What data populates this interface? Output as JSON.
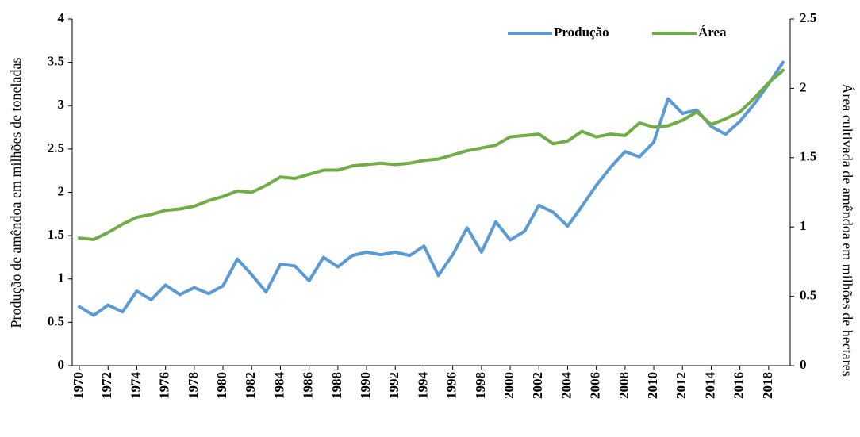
{
  "chart_data": {
    "type": "line",
    "categories": [
      "1970",
      null,
      "1972",
      null,
      "1974",
      null,
      "1976",
      null,
      "1978",
      null,
      "1980",
      null,
      "1982",
      null,
      "1984",
      null,
      "1986",
      null,
      "1988",
      null,
      "1990",
      null,
      "1992",
      null,
      "1994",
      null,
      "1996",
      null,
      "1998",
      null,
      "2000",
      null,
      "2002",
      null,
      "2004",
      null,
      "2006",
      null,
      "2008",
      null,
      "2010",
      null,
      "2012",
      null,
      "2014",
      null,
      "2016",
      null,
      "2018",
      null
    ],
    "series": [
      {
        "name": "Produção",
        "color": "#5b9bd5",
        "values": [
          0.68,
          0.58,
          0.7,
          0.62,
          0.86,
          0.76,
          0.93,
          0.82,
          0.9,
          0.83,
          0.92,
          1.23,
          1.05,
          0.85,
          1.17,
          1.15,
          0.98,
          1.25,
          1.14,
          1.27,
          1.31,
          1.28,
          1.31,
          1.27,
          1.38,
          1.04,
          1.28,
          1.59,
          1.31,
          1.66,
          1.45,
          1.55,
          1.85,
          1.77,
          1.61,
          1.84,
          2.08,
          2.29,
          2.47,
          2.41,
          2.58,
          3.08,
          2.91,
          2.95,
          2.76,
          2.67,
          2.82,
          3.02,
          3.25,
          3.5
        ]
      },
      {
        "name": "Área",
        "color": "#70ad47",
        "axis": "y2",
        "values": [
          0.92,
          0.91,
          0.96,
          1.02,
          1.07,
          1.09,
          1.12,
          1.13,
          1.15,
          1.19,
          1.22,
          1.26,
          1.25,
          1.3,
          1.36,
          1.35,
          1.38,
          1.41,
          1.41,
          1.44,
          1.45,
          1.46,
          1.45,
          1.46,
          1.48,
          1.49,
          1.52,
          1.55,
          1.57,
          1.59,
          1.65,
          1.66,
          1.67,
          1.6,
          1.62,
          1.69,
          1.65,
          1.67,
          1.66,
          1.75,
          1.72,
          1.73,
          1.77,
          1.83,
          1.74,
          1.78,
          1.83,
          1.93,
          2.04,
          2.13
        ]
      }
    ],
    "y_label": "Produção de amêndoa em milhões de toneladas",
    "y2_label": "Área cultivada de amêndoa em milhões de hectares",
    "ylim": [
      0,
      4
    ],
    "yticks": [
      0,
      0.5,
      1,
      1.5,
      2,
      2.5,
      3,
      3.5,
      4
    ],
    "y2lim": [
      0,
      2.5
    ],
    "y2ticks": [
      0,
      0.5,
      1,
      1.5,
      2,
      2.5
    ],
    "grid": false,
    "legend": "top-right"
  }
}
